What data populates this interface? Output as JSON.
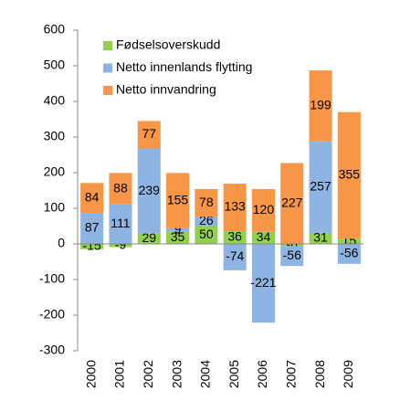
{
  "chart_data": {
    "type": "stacked_bar",
    "categories": [
      "2000",
      "2001",
      "2002",
      "2003",
      "2004",
      "2005",
      "2006",
      "2007",
      "2008",
      "2009"
    ],
    "series": [
      {
        "name": "Fødselsoverskudd",
        "color": "#92d050",
        "values": [
          -15,
          -9,
          29,
          35,
          50,
          36,
          34,
          -6,
          31,
          15
        ]
      },
      {
        "name": "Netto innenlands flytting",
        "color": "#8db4e2",
        "values": [
          87,
          111,
          239,
          9,
          26,
          -74,
          -221,
          -56,
          257,
          -56
        ]
      },
      {
        "name": "Netto innvandring",
        "color": "#f79646",
        "values": [
          84,
          88,
          77,
          155,
          78,
          133,
          120,
          227,
          199,
          355
        ]
      }
    ],
    "ylim": [
      -300,
      600
    ],
    "yticks": [
      -300,
      -200,
      -100,
      0,
      100,
      200,
      300,
      400,
      500,
      600
    ],
    "grid": false,
    "legend": "upper-left"
  }
}
